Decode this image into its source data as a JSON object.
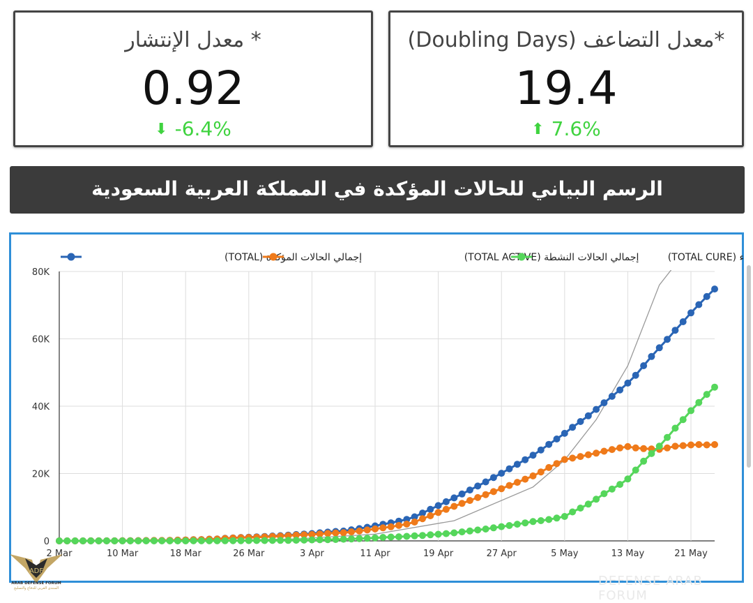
{
  "cards": {
    "left": {
      "title": "* معدل الإنتشار",
      "value": "0.92",
      "change": "-6.4%",
      "arrow_icon": "down-arrow-icon",
      "change_color": "#3fd33f"
    },
    "right": {
      "title": "*معدل التضاعف (Doubling Days)",
      "value": "19.4",
      "change": "7.6%",
      "arrow_icon": "up-arrow-icon",
      "change_color": "#3fd33f"
    }
  },
  "banner": {
    "title": "الرسم البياني للحالات المؤكدة في المملكة العربية السعودية"
  },
  "watermark": {
    "logo_text": "ARAB DEFENSE FORUM",
    "logo_subtext": "المنتدى العربي للدفاع والتسليح",
    "corner_text": "DEFENSE ARAB FORUM"
  },
  "colors": {
    "total": "#2a65b5",
    "active": "#ef7a1a",
    "cure": "#55d65b",
    "trend": "#999999",
    "chart_border": "#2f8fd8",
    "banner": "#3b3b3b"
  },
  "chart_data": {
    "type": "line",
    "title": "",
    "xlabel": "",
    "ylabel": "",
    "x_start": "2 Mar",
    "x_end": "24 May",
    "x_ticks": [
      "2 Mar",
      "10 Mar",
      "18 Mar",
      "26 Mar",
      "3 Apr",
      "11 Apr",
      "19 Apr",
      "27 Apr",
      "5 May",
      "13 May",
      "21 May"
    ],
    "y_ticks": [
      "0",
      "20K",
      "40K",
      "60K",
      "80K"
    ],
    "ylim": [
      0,
      80000
    ],
    "grid": true,
    "legend_position": "top",
    "series": [
      {
        "name": "إجمالي الحالات المؤكدة (TOTAL)",
        "color_key": "total",
        "values": [
          1,
          1,
          5,
          5,
          11,
          15,
          20,
          21,
          45,
          62,
          86,
          103,
          118,
          133,
          171,
          238,
          274,
          344,
          392,
          511,
          562,
          767,
          900,
          1012,
          1104,
          1203,
          1299,
          1453,
          1563,
          1720,
          1885,
          2039,
          2179,
          2402,
          2605,
          2795,
          2932,
          3287,
          3651,
          4033,
          4462,
          4934,
          5369,
          5862,
          6380,
          7142,
          8274,
          9362,
          10484,
          11631,
          12772,
          13930,
          15102,
          16299,
          17522,
          18811,
          20077,
          21402,
          22753,
          24097,
          25459,
          27011,
          28656,
          30251,
          31938,
          33731,
          35432,
          37136,
          39048,
          41014,
          42925,
          44830,
          46869,
          49176,
          52016,
          54752,
          57345,
          59854,
          62545,
          65077,
          67719,
          70161,
          72560,
          74795
        ]
      },
      {
        "name": "إجمالي الحالات النشطة (TOTAL ACTIVE)",
        "color_key": "active",
        "values": [
          1,
          1,
          5,
          5,
          11,
          15,
          20,
          21,
          44,
          61,
          84,
          100,
          114,
          127,
          163,
          229,
          263,
          330,
          375,
          493,
          540,
          727,
          846,
          944,
          1019,
          1103,
          1185,
          1322,
          1415,
          1553,
          1694,
          1800,
          1879,
          2053,
          2210,
          2358,
          2419,
          2668,
          2932,
          3236,
          3542,
          3872,
          4196,
          4573,
          4979,
          5592,
          6590,
          7470,
          8428,
          9372,
          10268,
          11129,
          11996,
          12870,
          13731,
          14625,
          15511,
          16454,
          17393,
          18325,
          19290,
          20482,
          21780,
          22973,
          24157,
          24584,
          25066,
          25566,
          26044,
          26632,
          27127,
          27605,
          28000,
          27606,
          27400,
          27300,
          27200,
          27600,
          28100,
          28300,
          28500,
          28600,
          28500,
          28600
        ]
      },
      {
        "name": "إجمالي الشفاء (TOTAL CURE)",
        "color_key": "cure",
        "values": [
          0,
          0,
          0,
          0,
          0,
          1,
          1,
          2,
          2,
          2,
          3,
          3,
          4,
          6,
          7,
          8,
          10,
          12,
          16,
          17,
          20,
          38,
          52,
          64,
          79,
          95,
          107,
          122,
          137,
          155,
          180,
          225,
          285,
          333,
          381,
          420,
          488,
          576,
          685,
          761,
          882,
          1026,
          1136,
          1230,
          1352,
          1490,
          1626,
          1812,
          1966,
          2152,
          2384,
          2678,
          2950,
          3225,
          3526,
          3883,
          4227,
          4566,
          4956,
          5355,
          5738,
          6012,
          6351,
          6767,
          7257,
          8608,
          9746,
          10923,
          12371,
          14012,
          15406,
          16760,
          18374,
          21032,
          23664,
          25925,
          28133,
          30714,
          33478,
          36025,
          38675,
          41092,
          43500,
          45668
        ]
      }
    ],
    "trend_curve": {
      "label": "",
      "x_days": [
        0,
        10,
        20,
        30,
        40,
        50,
        60,
        64,
        68,
        72,
        76,
        78,
        80
      ],
      "values": [
        0,
        30,
        150,
        600,
        2000,
        6000,
        16000,
        24000,
        36000,
        52000,
        76000,
        82000,
        82000
      ]
    }
  }
}
